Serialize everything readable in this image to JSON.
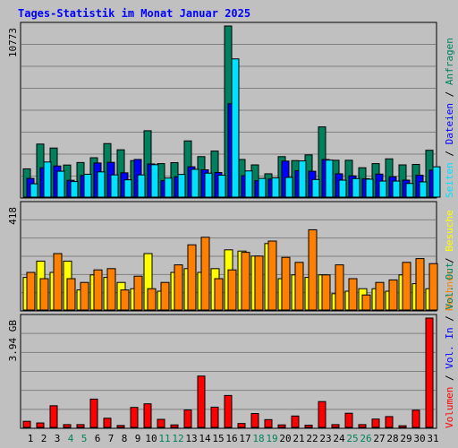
{
  "title": "Tages-Statistik im Monat Januar 2025",
  "colors": {
    "background": "#c0c0c0",
    "title": "#0000ff",
    "grid": "#808080",
    "anfragen": "#00805c",
    "dateien": "#0000ff",
    "seiten": "#00e0ff",
    "besuche": "#ffff00",
    "rechner": "#ff8000",
    "vol_in": "#ff0000",
    "weekday_label": "#000000",
    "weekend_label": "#00805c"
  },
  "chart_data": [
    {
      "type": "bar",
      "name": "top",
      "max_label": "10773",
      "ylim": [
        0,
        10773
      ],
      "categories": [
        "1",
        "2",
        "3",
        "4",
        "5",
        "6",
        "7",
        "8",
        "9",
        "10",
        "11",
        "12",
        "13",
        "14",
        "15",
        "16",
        "17",
        "18",
        "19",
        "20",
        "21",
        "22",
        "23",
        "24",
        "25",
        "26",
        "27",
        "28",
        "29",
        "30",
        "31"
      ],
      "weekend_days": [
        "4",
        "5",
        "11",
        "12",
        "18",
        "19",
        "25",
        "26"
      ],
      "legend": [
        "Anfragen",
        "Dateien",
        "Seiten"
      ],
      "series": [
        {
          "name": "Anfragen",
          "values": [
            1780,
            3340,
            3090,
            2020,
            2180,
            2480,
            3370,
            2980,
            2300,
            4180,
            2110,
            2170,
            3540,
            2550,
            2900,
            10773,
            2370,
            2030,
            1470,
            2550,
            2300,
            2660,
            4420,
            2320,
            2320,
            1850,
            2110,
            2410,
            2030,
            2060,
            2950
          ]
        },
        {
          "name": "Dateien",
          "values": [
            1180,
            1850,
            1960,
            1060,
            1360,
            2150,
            2190,
            1530,
            2370,
            2090,
            1040,
            1280,
            1910,
            1720,
            1550,
            5880,
            1350,
            1040,
            1140,
            2270,
            1660,
            1630,
            2370,
            1470,
            1340,
            1160,
            1450,
            1280,
            1070,
            1380,
            1700
          ]
        },
        {
          "name": "Seiten",
          "values": [
            840,
            2210,
            1630,
            980,
            1440,
            1590,
            1400,
            1090,
            1400,
            2040,
            1200,
            1430,
            1750,
            1510,
            1380,
            8700,
            1650,
            1180,
            1210,
            1240,
            2280,
            1110,
            2330,
            1070,
            1170,
            1130,
            1010,
            1010,
            860,
            960,
            1910
          ]
        }
      ]
    },
    {
      "type": "bar",
      "name": "middle",
      "max_label": "418",
      "ylim": [
        0,
        418
      ],
      "categories": [
        "1",
        "2",
        "3",
        "4",
        "5",
        "6",
        "7",
        "8",
        "9",
        "10",
        "11",
        "12",
        "13",
        "14",
        "15",
        "16",
        "17",
        "18",
        "19",
        "20",
        "21",
        "22",
        "23",
        "24",
        "25",
        "26",
        "27",
        "28",
        "29",
        "30",
        "31"
      ],
      "legend": [
        "Besuche",
        "Rechner"
      ],
      "series": [
        {
          "name": "Besuche",
          "values": [
            130,
            195,
            150,
            195,
            80,
            140,
            130,
            110,
            85,
            225,
            75,
            150,
            165,
            150,
            165,
            240,
            235,
            215,
            265,
            125,
            140,
            130,
            140,
            65,
            75,
            85,
            85,
            75,
            140,
            105,
            85
          ]
        },
        {
          "name": "Rechner",
          "values": [
            150,
            125,
            225,
            125,
            110,
            160,
            165,
            80,
            135,
            85,
            110,
            180,
            260,
            290,
            125,
            160,
            230,
            215,
            275,
            210,
            190,
            320,
            140,
            180,
            125,
            60,
            110,
            120,
            190,
            205,
            185
          ]
        }
      ]
    },
    {
      "type": "bar",
      "name": "bottom",
      "max_label": "3.94 GB",
      "ylim": [
        0,
        3.94
      ],
      "categories": [
        "1",
        "2",
        "3",
        "4",
        "5",
        "6",
        "7",
        "8",
        "9",
        "10",
        "11",
        "12",
        "13",
        "14",
        "15",
        "16",
        "17",
        "18",
        "19",
        "20",
        "21",
        "22",
        "23",
        "24",
        "25",
        "26",
        "27",
        "28",
        "29",
        "30",
        "31"
      ],
      "legend": [
        "Volumen",
        "Vol. In",
        "Vol. Out"
      ],
      "series": [
        {
          "name": "Volumen",
          "values": [
            0.22,
            0.16,
            0.78,
            0.1,
            0.1,
            1.02,
            0.33,
            0.07,
            0.72,
            0.85,
            0.29,
            0.09,
            0.63,
            1.85,
            0.73,
            1.15,
            0.14,
            0.5,
            0.28,
            0.09,
            0.41,
            0.08,
            0.93,
            0.1,
            0.51,
            0.1,
            0.3,
            0.39,
            0.06,
            0.62,
            3.94
          ]
        }
      ]
    }
  ],
  "right_legend": {
    "top": [
      "Anfragen",
      "Dateien",
      "Seiten"
    ],
    "middle": [
      "Rechner",
      "Besuche"
    ],
    "bottom": [
      "Volumen",
      "Vol. In",
      "Vol. Out"
    ],
    "separator": " / "
  }
}
